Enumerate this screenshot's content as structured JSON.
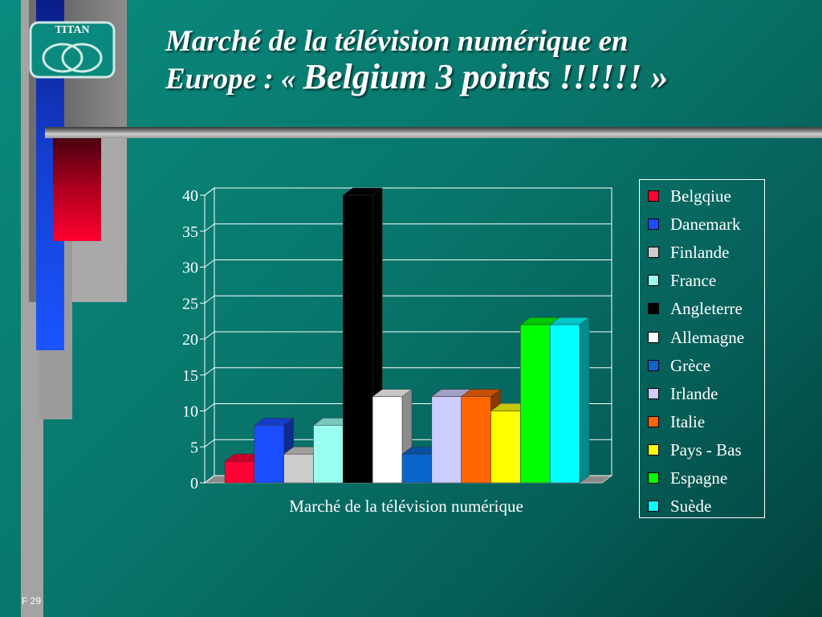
{
  "logo_text": "TITAN",
  "title": {
    "line1": "Marché de la télévision numérique en",
    "line2_start": "Europe : « ",
    "line2_emph": "Belgium 3 points !!!!!! »"
  },
  "page_number": "F 29",
  "chart_data": {
    "type": "bar",
    "categories": [
      "Marché de la télévision numérique"
    ],
    "xlabel": "Marché de la télévision numérique",
    "ylim": [
      0,
      40
    ],
    "yticks": [
      "0",
      "5",
      "10",
      "15",
      "20",
      "25",
      "30",
      "35",
      "40"
    ],
    "grid": true,
    "legend_position": "right",
    "series": [
      {
        "name": "Belgqiue",
        "value": 3,
        "color": "#ff0033"
      },
      {
        "name": "Danemark",
        "value": 8,
        "color": "#1a4dff"
      },
      {
        "name": "Finlande",
        "value": 4,
        "color": "#cccccc"
      },
      {
        "name": "France",
        "value": 8,
        "color": "#99ffee"
      },
      {
        "name": "Angleterre",
        "value": 40,
        "color": "#000000"
      },
      {
        "name": "Allemagne",
        "value": 12,
        "color": "#ffffff"
      },
      {
        "name": "Grèce",
        "value": 4,
        "color": "#0a66cc"
      },
      {
        "name": "Irlande",
        "value": 12,
        "color": "#ccccff"
      },
      {
        "name": "Italie",
        "value": 12,
        "color": "#ff6600"
      },
      {
        "name": "Pays - Bas",
        "value": 10,
        "color": "#ffff00"
      },
      {
        "name": "Espagne",
        "value": 22,
        "color": "#00ff00"
      },
      {
        "name": "Suède",
        "value": 22,
        "color": "#00ffff"
      }
    ]
  }
}
